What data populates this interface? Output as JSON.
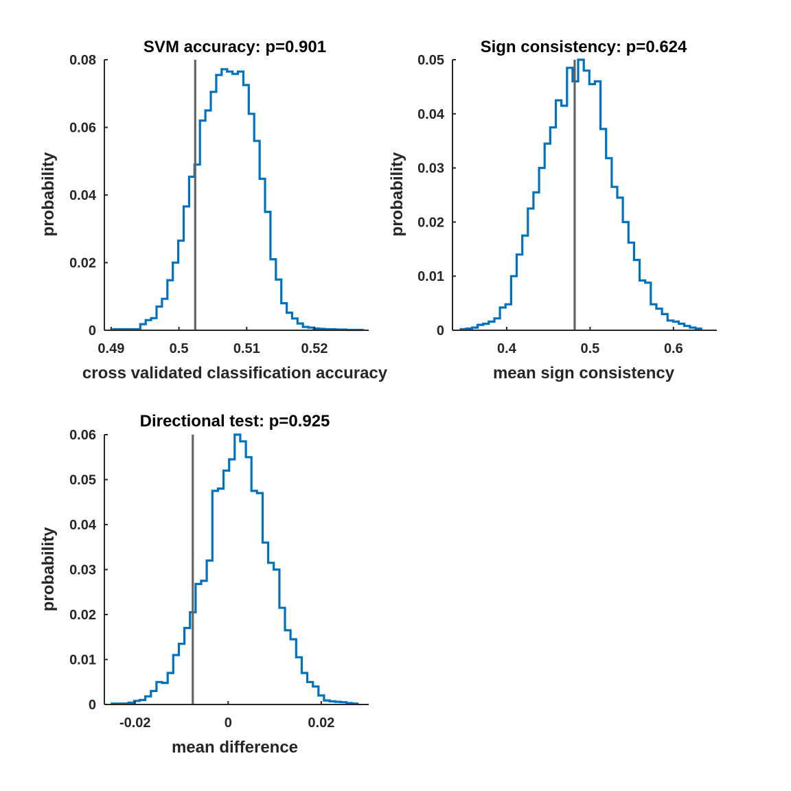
{
  "chart_data": [
    {
      "type": "histogram",
      "title": "SVM accuracy: p=0.901",
      "xlabel": "cross validated classification accuracy",
      "ylabel": "probability",
      "xlim": [
        0.489,
        0.528
      ],
      "ylim": [
        0,
        0.08
      ],
      "xticks": [
        0.49,
        0.5,
        0.51,
        0.52
      ],
      "xtick_labels": [
        "0.49",
        "0.5",
        "0.51",
        "0.52"
      ],
      "yticks": [
        0,
        0.02,
        0.04,
        0.06,
        0.08
      ],
      "ytick_labels": [
        "0",
        "0.02",
        "0.04",
        "0.06",
        "0.08"
      ],
      "bin_edges": [
        0.4903,
        0.4911,
        0.4919,
        0.4927,
        0.4935,
        0.4943,
        0.4951,
        0.4959,
        0.4967,
        0.4975,
        0.4983,
        0.4991,
        0.4999,
        0.5007,
        0.5015,
        0.5023,
        0.5031,
        0.5039,
        0.5047,
        0.5055,
        0.5063,
        0.5071,
        0.5079,
        0.5087,
        0.5095,
        0.5103,
        0.5111,
        0.5119,
        0.5127,
        0.5135,
        0.5143,
        0.5151,
        0.5159,
        0.5167,
        0.5175,
        0.5183,
        0.5191,
        0.5199,
        0.5207,
        0.5215,
        0.5223,
        0.5231,
        0.5239,
        0.5247,
        0.5255,
        0.5263,
        0.5271
      ],
      "values": [
        0.0003,
        0.0003,
        0.0003,
        0.0003,
        0.0003,
        0.0018,
        0.003,
        0.0036,
        0.007,
        0.0093,
        0.0148,
        0.02,
        0.0265,
        0.0366,
        0.0454,
        0.049,
        0.062,
        0.065,
        0.0705,
        0.0755,
        0.0772,
        0.0765,
        0.0758,
        0.0765,
        0.0725,
        0.064,
        0.056,
        0.0448,
        0.035,
        0.021,
        0.015,
        0.008,
        0.0052,
        0.0035,
        0.002,
        0.001,
        0.0008,
        0.0005,
        0.0004,
        0.0003,
        0.0003,
        0.0002,
        0.0002,
        0.0001,
        0.0001,
        0.0001
      ],
      "reference_line": 0.5024,
      "colors": {
        "hist": "#0072BD",
        "reference": "#646464"
      }
    },
    {
      "type": "histogram",
      "title": "Sign consistency: p=0.624",
      "xlabel": "mean sign consistency",
      "ylabel": "probability",
      "xlim": [
        0.335,
        0.652
      ],
      "ylim": [
        0,
        0.05
      ],
      "xticks": [
        0.4,
        0.5,
        0.6
      ],
      "xtick_labels": [
        "0.4",
        "0.5",
        "0.6"
      ],
      "yticks": [
        0,
        0.01,
        0.02,
        0.03,
        0.04,
        0.05
      ],
      "ytick_labels": [
        "0",
        "0.01",
        "0.02",
        "0.03",
        "0.04",
        "0.05"
      ],
      "bin_edges": [
        0.345,
        0.3517,
        0.3584,
        0.3651,
        0.3718,
        0.3785,
        0.3852,
        0.3919,
        0.3986,
        0.4053,
        0.412,
        0.4187,
        0.4254,
        0.4321,
        0.4388,
        0.4455,
        0.4522,
        0.4589,
        0.4656,
        0.4723,
        0.479,
        0.4857,
        0.4924,
        0.4991,
        0.5058,
        0.5125,
        0.5192,
        0.5259,
        0.5326,
        0.5393,
        0.546,
        0.5527,
        0.5594,
        0.5661,
        0.5728,
        0.5795,
        0.5862,
        0.5929,
        0.5996,
        0.6063,
        0.613,
        0.6197,
        0.6264,
        0.6331
      ],
      "values": [
        0.0002,
        0.0003,
        0.0005,
        0.001,
        0.0012,
        0.0016,
        0.0022,
        0.0042,
        0.0048,
        0.01,
        0.014,
        0.0175,
        0.0225,
        0.0255,
        0.03,
        0.0345,
        0.0375,
        0.0425,
        0.0415,
        0.0485,
        0.046,
        0.05,
        0.048,
        0.0455,
        0.046,
        0.0372,
        0.0318,
        0.0265,
        0.0245,
        0.02,
        0.0162,
        0.013,
        0.0092,
        0.0088,
        0.0048,
        0.004,
        0.003,
        0.0018,
        0.0016,
        0.0012,
        0.0008,
        0.0005,
        0.0003
      ],
      "reference_line": 0.4815,
      "colors": {
        "hist": "#0072BD",
        "reference": "#646464"
      }
    },
    {
      "type": "histogram",
      "title": "Directional test: p=0.925",
      "xlabel": "mean difference",
      "ylabel": "probability",
      "xlim": [
        -0.0266,
        0.0302
      ],
      "ylim": [
        0,
        0.06
      ],
      "xticks": [
        -0.02,
        0,
        0.02
      ],
      "xtick_labels": [
        "-0.02",
        "0",
        "0.02"
      ],
      "yticks": [
        0,
        0.01,
        0.02,
        0.03,
        0.04,
        0.05,
        0.06
      ],
      "ytick_labels": [
        "0",
        "0.01",
        "0.02",
        "0.03",
        "0.04",
        "0.05",
        "0.06"
      ],
      "bin_edges": [
        -0.025,
        -0.0238,
        -0.0226,
        -0.0214,
        -0.0202,
        -0.019,
        -0.0178,
        -0.0166,
        -0.0154,
        -0.0142,
        -0.013,
        -0.0118,
        -0.0106,
        -0.0094,
        -0.0082,
        -0.007,
        -0.0058,
        -0.0046,
        -0.0034,
        -0.0022,
        -0.001,
        0.0002,
        0.0014,
        0.0026,
        0.0038,
        0.005,
        0.0062,
        0.0074,
        0.0086,
        0.0098,
        0.011,
        0.0122,
        0.0134,
        0.0146,
        0.0158,
        0.017,
        0.0182,
        0.0194,
        0.0206,
        0.0218,
        0.023,
        0.0242,
        0.0254,
        0.0266,
        0.0278
      ],
      "values": [
        0.0002,
        0.0002,
        0.0002,
        0.0004,
        0.0008,
        0.001,
        0.0018,
        0.003,
        0.005,
        0.0048,
        0.007,
        0.011,
        0.0135,
        0.017,
        0.0205,
        0.0268,
        0.0275,
        0.032,
        0.0475,
        0.048,
        0.052,
        0.0545,
        0.06,
        0.0585,
        0.055,
        0.0475,
        0.047,
        0.036,
        0.0315,
        0.03,
        0.0215,
        0.0165,
        0.0145,
        0.0105,
        0.007,
        0.005,
        0.004,
        0.002,
        0.0009,
        0.0007,
        0.0006,
        0.0005,
        0.0003,
        0.0002
      ],
      "reference_line": -0.0076,
      "colors": {
        "hist": "#0072BD",
        "reference": "#646464"
      }
    }
  ]
}
